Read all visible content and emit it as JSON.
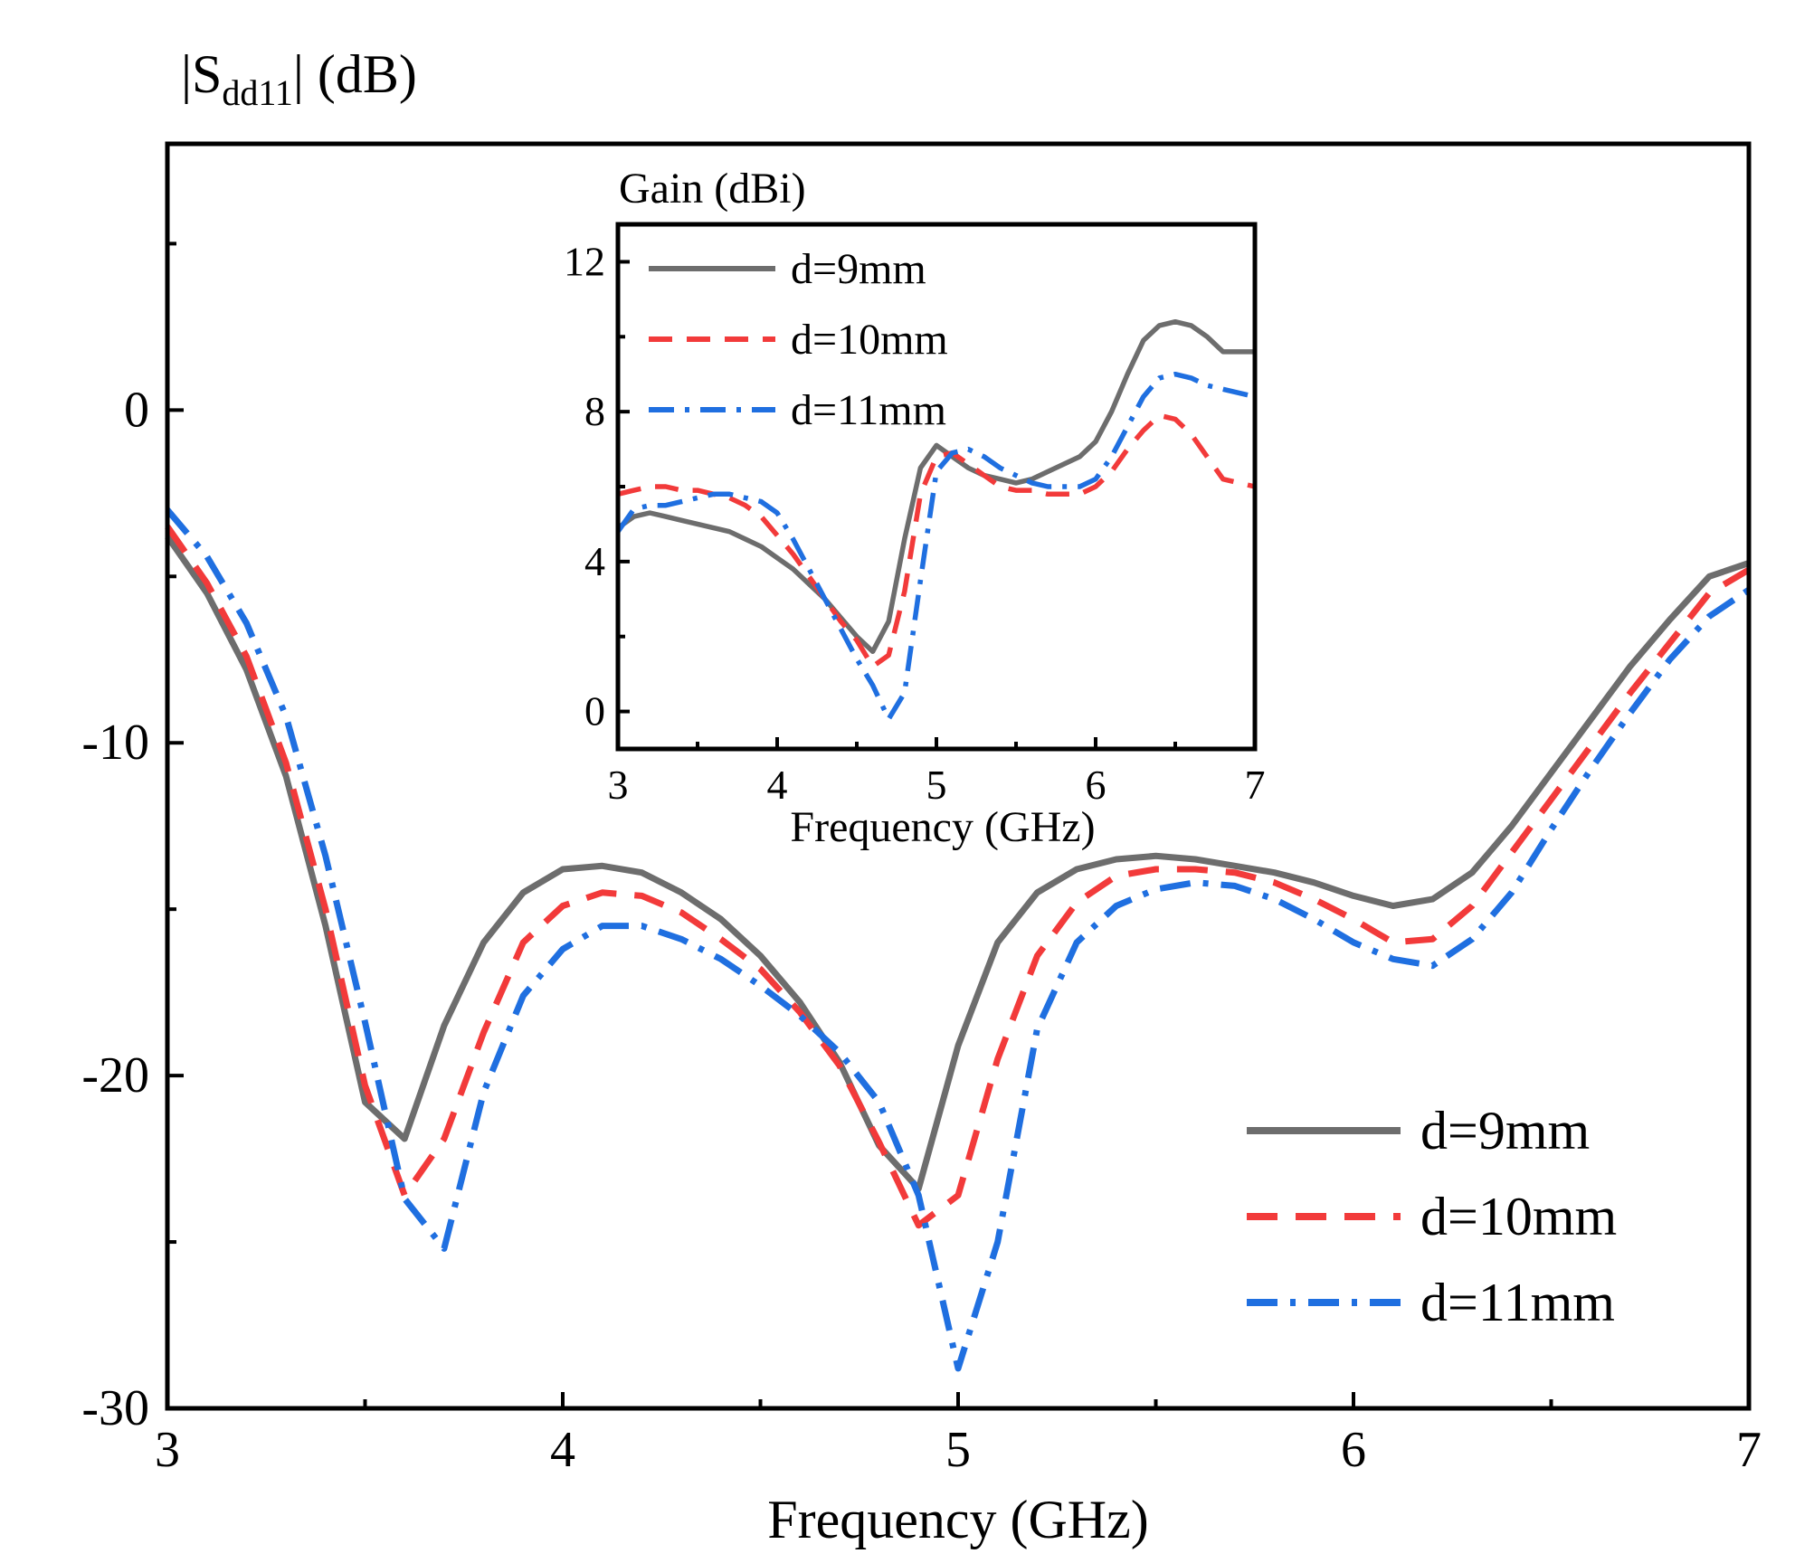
{
  "chart_data": [
    {
      "id": "main",
      "type": "line",
      "title": "",
      "ylabel": {
        "prefix": "|S",
        "sub": "dd11",
        "suffix": "| (dB)"
      },
      "xlabel": "Frequency (GHz)",
      "xlim": [
        3,
        7
      ],
      "ylim": [
        -30,
        8
      ],
      "x_ticks": [
        3,
        4,
        5,
        6,
        7
      ],
      "x_tick_labels": [
        "3",
        "4",
        "5",
        "6",
        "7"
      ],
      "y_ticks": [
        -30,
        -20,
        -10,
        0
      ],
      "y_tick_labels": [
        "-30",
        "-20",
        "-10",
        "0"
      ],
      "x_minor_ticks": [
        3.5,
        4.5,
        5.5,
        6.5
      ],
      "y_minor_ticks": [
        -25,
        -15,
        -5,
        5
      ],
      "grid": false,
      "legend_position": "bottom-right",
      "series": [
        {
          "name": "d=9mm",
          "color": "#6d6d6d",
          "dash": "solid",
          "x": [
            3.0,
            3.1,
            3.2,
            3.3,
            3.4,
            3.5,
            3.6,
            3.7,
            3.8,
            3.9,
            4.0,
            4.1,
            4.2,
            4.3,
            4.4,
            4.5,
            4.6,
            4.7,
            4.8,
            4.9,
            5.0,
            5.1,
            5.2,
            5.3,
            5.4,
            5.5,
            5.6,
            5.7,
            5.8,
            5.9,
            6.0,
            6.1,
            6.2,
            6.3,
            6.4,
            6.5,
            6.6,
            6.7,
            6.8,
            6.9,
            7.0
          ],
          "y": [
            -3.8,
            -5.5,
            -7.8,
            -11.0,
            -15.5,
            -20.8,
            -21.9,
            -18.5,
            -16.0,
            -14.5,
            -13.8,
            -13.7,
            -13.9,
            -14.5,
            -15.3,
            -16.4,
            -17.8,
            -19.6,
            -22.1,
            -23.4,
            -19.1,
            -16.0,
            -14.5,
            -13.8,
            -13.5,
            -13.4,
            -13.5,
            -13.7,
            -13.9,
            -14.2,
            -14.6,
            -14.9,
            -14.7,
            -13.9,
            -12.5,
            -10.9,
            -9.3,
            -7.7,
            -6.3,
            -5.0,
            -4.6
          ]
        },
        {
          "name": "d=10mm",
          "color": "#f23a3a",
          "dash": "dashed",
          "x": [
            3.0,
            3.1,
            3.2,
            3.3,
            3.4,
            3.5,
            3.6,
            3.7,
            3.8,
            3.9,
            4.0,
            4.1,
            4.2,
            4.3,
            4.4,
            4.5,
            4.6,
            4.7,
            4.8,
            4.9,
            5.0,
            5.1,
            5.2,
            5.3,
            5.4,
            5.5,
            5.6,
            5.7,
            5.8,
            5.9,
            6.0,
            6.1,
            6.2,
            6.3,
            6.4,
            6.5,
            6.6,
            6.7,
            6.8,
            6.9,
            7.0
          ],
          "y": [
            -3.5,
            -5.2,
            -7.4,
            -10.6,
            -15.0,
            -20.3,
            -23.6,
            -21.9,
            -18.7,
            -16.0,
            -14.9,
            -14.5,
            -14.6,
            -15.1,
            -15.9,
            -16.8,
            -18.1,
            -19.7,
            -22.0,
            -24.5,
            -23.6,
            -19.5,
            -16.4,
            -14.8,
            -14.0,
            -13.8,
            -13.8,
            -13.9,
            -14.2,
            -14.7,
            -15.3,
            -16.0,
            -15.9,
            -14.9,
            -13.3,
            -11.7,
            -10.1,
            -8.5,
            -7.0,
            -5.5,
            -4.8
          ]
        },
        {
          "name": "d=11mm",
          "color": "#1f6fe0",
          "dash": "dashdot",
          "x": [
            3.0,
            3.1,
            3.2,
            3.3,
            3.4,
            3.5,
            3.6,
            3.7,
            3.8,
            3.9,
            4.0,
            4.1,
            4.2,
            4.3,
            4.4,
            4.5,
            4.6,
            4.7,
            4.8,
            4.9,
            5.0,
            5.1,
            5.2,
            5.3,
            5.4,
            5.5,
            5.6,
            5.7,
            5.8,
            5.9,
            6.0,
            6.1,
            6.2,
            6.3,
            6.4,
            6.5,
            6.6,
            6.7,
            6.8,
            6.9,
            7.0
          ],
          "y": [
            -3.0,
            -4.4,
            -6.4,
            -9.2,
            -13.4,
            -18.4,
            -23.7,
            -25.2,
            -20.5,
            -17.6,
            -16.2,
            -15.5,
            -15.5,
            -15.9,
            -16.5,
            -17.3,
            -18.2,
            -19.3,
            -20.8,
            -23.6,
            -28.8,
            -25.0,
            -18.6,
            -16.0,
            -14.9,
            -14.4,
            -14.2,
            -14.3,
            -14.7,
            -15.3,
            -16.0,
            -16.5,
            -16.7,
            -15.9,
            -14.5,
            -12.6,
            -10.8,
            -9.1,
            -7.5,
            -6.2,
            -5.4
          ]
        }
      ]
    },
    {
      "id": "inset",
      "type": "line",
      "title": "",
      "ylabel": "Gain (dBi)",
      "xlabel": "Frequency (GHz)",
      "xlim": [
        3,
        7
      ],
      "ylim": [
        -1,
        13
      ],
      "x_ticks": [
        3,
        4,
        5,
        6,
        7
      ],
      "x_tick_labels": [
        "3",
        "4",
        "5",
        "6",
        "7"
      ],
      "y_ticks": [
        0,
        4,
        8,
        12
      ],
      "y_tick_labels": [
        "0",
        "4",
        "8",
        "12"
      ],
      "x_minor_ticks": [
        3.5,
        4.5,
        5.5,
        6.5
      ],
      "y_minor_ticks": [
        2,
        6,
        10
      ],
      "grid": false,
      "legend_position": "top-left",
      "series": [
        {
          "name": "d=9mm",
          "color": "#6d6d6d",
          "dash": "solid",
          "x": [
            3.0,
            3.1,
            3.2,
            3.3,
            3.4,
            3.5,
            3.6,
            3.7,
            3.8,
            3.9,
            4.0,
            4.1,
            4.2,
            4.3,
            4.4,
            4.5,
            4.6,
            4.7,
            4.8,
            4.9,
            5.0,
            5.1,
            5.2,
            5.3,
            5.4,
            5.5,
            5.6,
            5.7,
            5.8,
            5.9,
            6.0,
            6.1,
            6.2,
            6.3,
            6.4,
            6.5,
            6.6,
            6.7,
            6.8,
            6.9,
            7.0
          ],
          "y": [
            4.9,
            5.2,
            5.3,
            5.2,
            5.1,
            5.0,
            4.9,
            4.8,
            4.6,
            4.4,
            4.1,
            3.8,
            3.4,
            3.0,
            2.5,
            2.0,
            1.6,
            2.4,
            4.6,
            6.5,
            7.1,
            6.8,
            6.5,
            6.3,
            6.2,
            6.1,
            6.2,
            6.4,
            6.6,
            6.8,
            7.2,
            8.0,
            9.0,
            9.9,
            10.3,
            10.4,
            10.3,
            10.0,
            9.6,
            9.6,
            9.6
          ]
        },
        {
          "name": "d=10mm",
          "color": "#f23a3a",
          "dash": "dashed",
          "x": [
            3.0,
            3.1,
            3.2,
            3.3,
            3.4,
            3.5,
            3.6,
            3.7,
            3.8,
            3.9,
            4.0,
            4.1,
            4.2,
            4.3,
            4.4,
            4.5,
            4.6,
            4.7,
            4.8,
            4.9,
            5.0,
            5.1,
            5.2,
            5.3,
            5.4,
            5.5,
            5.6,
            5.7,
            5.8,
            5.9,
            6.0,
            6.1,
            6.2,
            6.3,
            6.4,
            6.5,
            6.6,
            6.7,
            6.8,
            6.9,
            7.0
          ],
          "y": [
            5.8,
            5.9,
            6.0,
            6.0,
            5.9,
            5.9,
            5.8,
            5.7,
            5.5,
            5.2,
            4.7,
            4.2,
            3.6,
            3.0,
            2.4,
            1.9,
            1.2,
            1.5,
            3.2,
            5.8,
            6.8,
            6.9,
            6.6,
            6.3,
            6.0,
            5.9,
            5.9,
            5.8,
            5.8,
            5.8,
            6.0,
            6.4,
            7.0,
            7.5,
            7.9,
            7.8,
            7.4,
            6.8,
            6.2,
            6.1,
            6.0
          ]
        },
        {
          "name": "d=11mm",
          "color": "#1f6fe0",
          "dash": "dashdot",
          "x": [
            3.0,
            3.1,
            3.2,
            3.3,
            3.4,
            3.5,
            3.6,
            3.7,
            3.8,
            3.9,
            4.0,
            4.1,
            4.2,
            4.3,
            4.4,
            4.5,
            4.6,
            4.7,
            4.8,
            4.9,
            5.0,
            5.1,
            5.2,
            5.3,
            5.4,
            5.5,
            5.6,
            5.7,
            5.8,
            5.9,
            6.0,
            6.1,
            6.2,
            6.3,
            6.4,
            6.5,
            6.6,
            6.7,
            6.8,
            6.9,
            7.0
          ],
          "y": [
            4.8,
            5.4,
            5.5,
            5.5,
            5.6,
            5.7,
            5.8,
            5.8,
            5.7,
            5.6,
            5.3,
            4.6,
            3.8,
            3.0,
            2.2,
            1.4,
            0.7,
            -0.2,
            0.5,
            3.5,
            6.4,
            6.9,
            7.0,
            6.8,
            6.5,
            6.3,
            6.1,
            6.0,
            6.0,
            6.0,
            6.2,
            6.8,
            7.6,
            8.4,
            8.9,
            9.0,
            8.9,
            8.7,
            8.6,
            8.5,
            8.4
          ]
        }
      ]
    }
  ]
}
